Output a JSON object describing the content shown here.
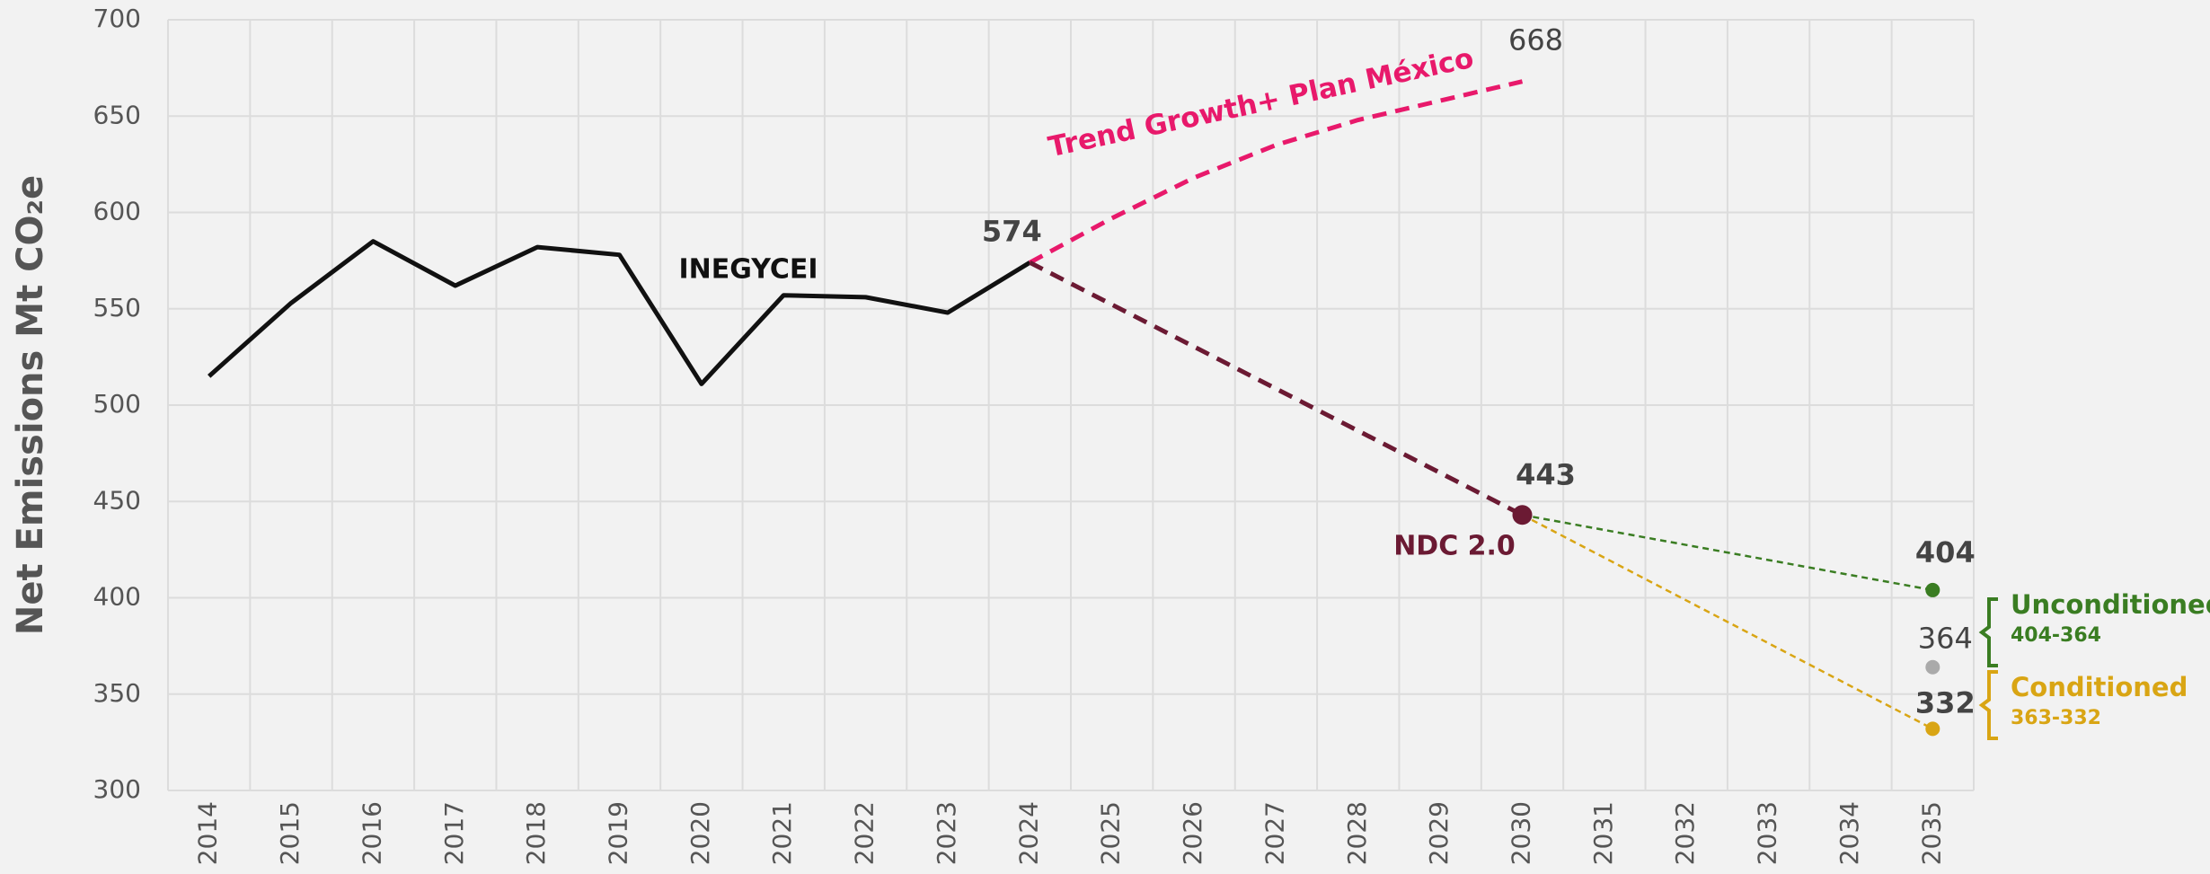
{
  "chart_data": {
    "type": "line",
    "ylabel": "Net Emissions Mt CO₂e",
    "xlim": [
      2013.5,
      2035.5
    ],
    "xticks": [
      2014,
      2015,
      2016,
      2017,
      2018,
      2019,
      2020,
      2021,
      2022,
      2023,
      2024,
      2025,
      2026,
      2027,
      2028,
      2029,
      2030,
      2031,
      2032,
      2033,
      2034,
      2035
    ],
    "ylim": [
      300,
      700
    ],
    "yticks": [
      300,
      350,
      400,
      450,
      500,
      550,
      600,
      650,
      700
    ],
    "grid": true,
    "series": [
      {
        "name": "INEGYCEI",
        "color": "#111111",
        "line_style": "solid",
        "markers": false,
        "x": [
          2014,
          2015,
          2016,
          2017,
          2018,
          2019,
          2020,
          2021,
          2022,
          2023,
          2024
        ],
        "values": [
          515,
          553,
          585,
          562,
          582,
          578,
          511,
          557,
          556,
          548,
          574
        ]
      },
      {
        "name": "Trend Growth+ Plan México",
        "color": "#e8196b",
        "line_style": "dashed",
        "markers": false,
        "x": [
          2024,
          2025,
          2026,
          2027,
          2028,
          2029,
          2030
        ],
        "values": [
          574,
          597,
          618,
          635,
          648,
          658,
          668
        ]
      },
      {
        "name": "NDC 2.0",
        "color": "#6b1a33",
        "line_style": "dashed",
        "markers": true,
        "x": [
          2024,
          2030
        ],
        "values": [
          574,
          443
        ]
      },
      {
        "name": "Unconditioned",
        "range": "404-364",
        "color": "#3a7d22",
        "line_style": "dotted",
        "markers": true,
        "x": [
          2030,
          2035
        ],
        "values": [
          443,
          404
        ]
      },
      {
        "name": "Conditioned",
        "range": "363-332",
        "color": "#d9a514",
        "line_style": "dotted",
        "markers": true,
        "x": [
          2030,
          2035
        ],
        "values": [
          443,
          332
        ]
      }
    ],
    "extra_points": [
      {
        "x": 2035,
        "value": 364,
        "color": "#aaaaaa"
      }
    ]
  }
}
